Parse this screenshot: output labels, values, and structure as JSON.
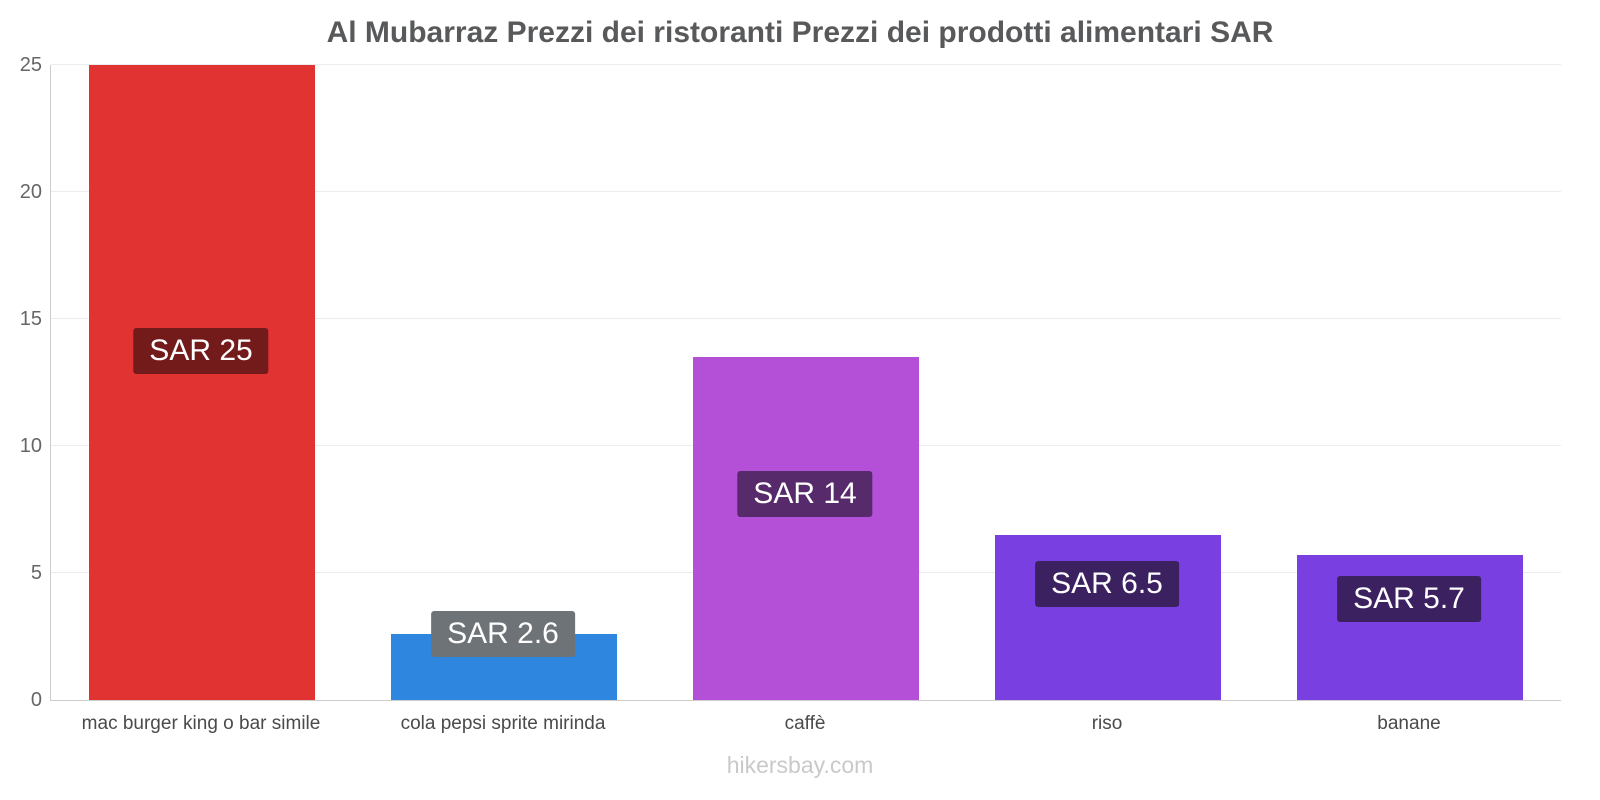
{
  "title": "Al Mubarraz Prezzi dei ristoranti Prezzi dei prodotti alimentari SAR",
  "footer": "hikersbay.com",
  "chart_data": {
    "type": "bar",
    "title": "Al Mubarraz Prezzi dei ristoranti Prezzi dei prodotti alimentari SAR",
    "categories": [
      "mac burger king o bar simile",
      "cola pepsi sprite mirinda",
      "caffè",
      "riso",
      "banane"
    ],
    "values": [
      25,
      2.6,
      13.5,
      6.5,
      5.7
    ],
    "bar_labels": [
      "SAR 25",
      "SAR 2.6",
      "SAR 14",
      "SAR 6.5",
      "SAR 5.7"
    ],
    "bar_colors": [
      "#e23333",
      "#2e86de",
      "#b44fd8",
      "#7a3fe0",
      "#7a3fe0"
    ],
    "label_bg_colors": [
      "#731a1a",
      "#6e7377",
      "#572a6b",
      "#3c2161",
      "#3c2161"
    ],
    "currency": "SAR",
    "xlabel": "",
    "ylabel": "",
    "ylim": [
      0,
      25
    ],
    "yticks": [
      0,
      5,
      10,
      15,
      20,
      25
    ],
    "grid": true,
    "legend": false
  }
}
